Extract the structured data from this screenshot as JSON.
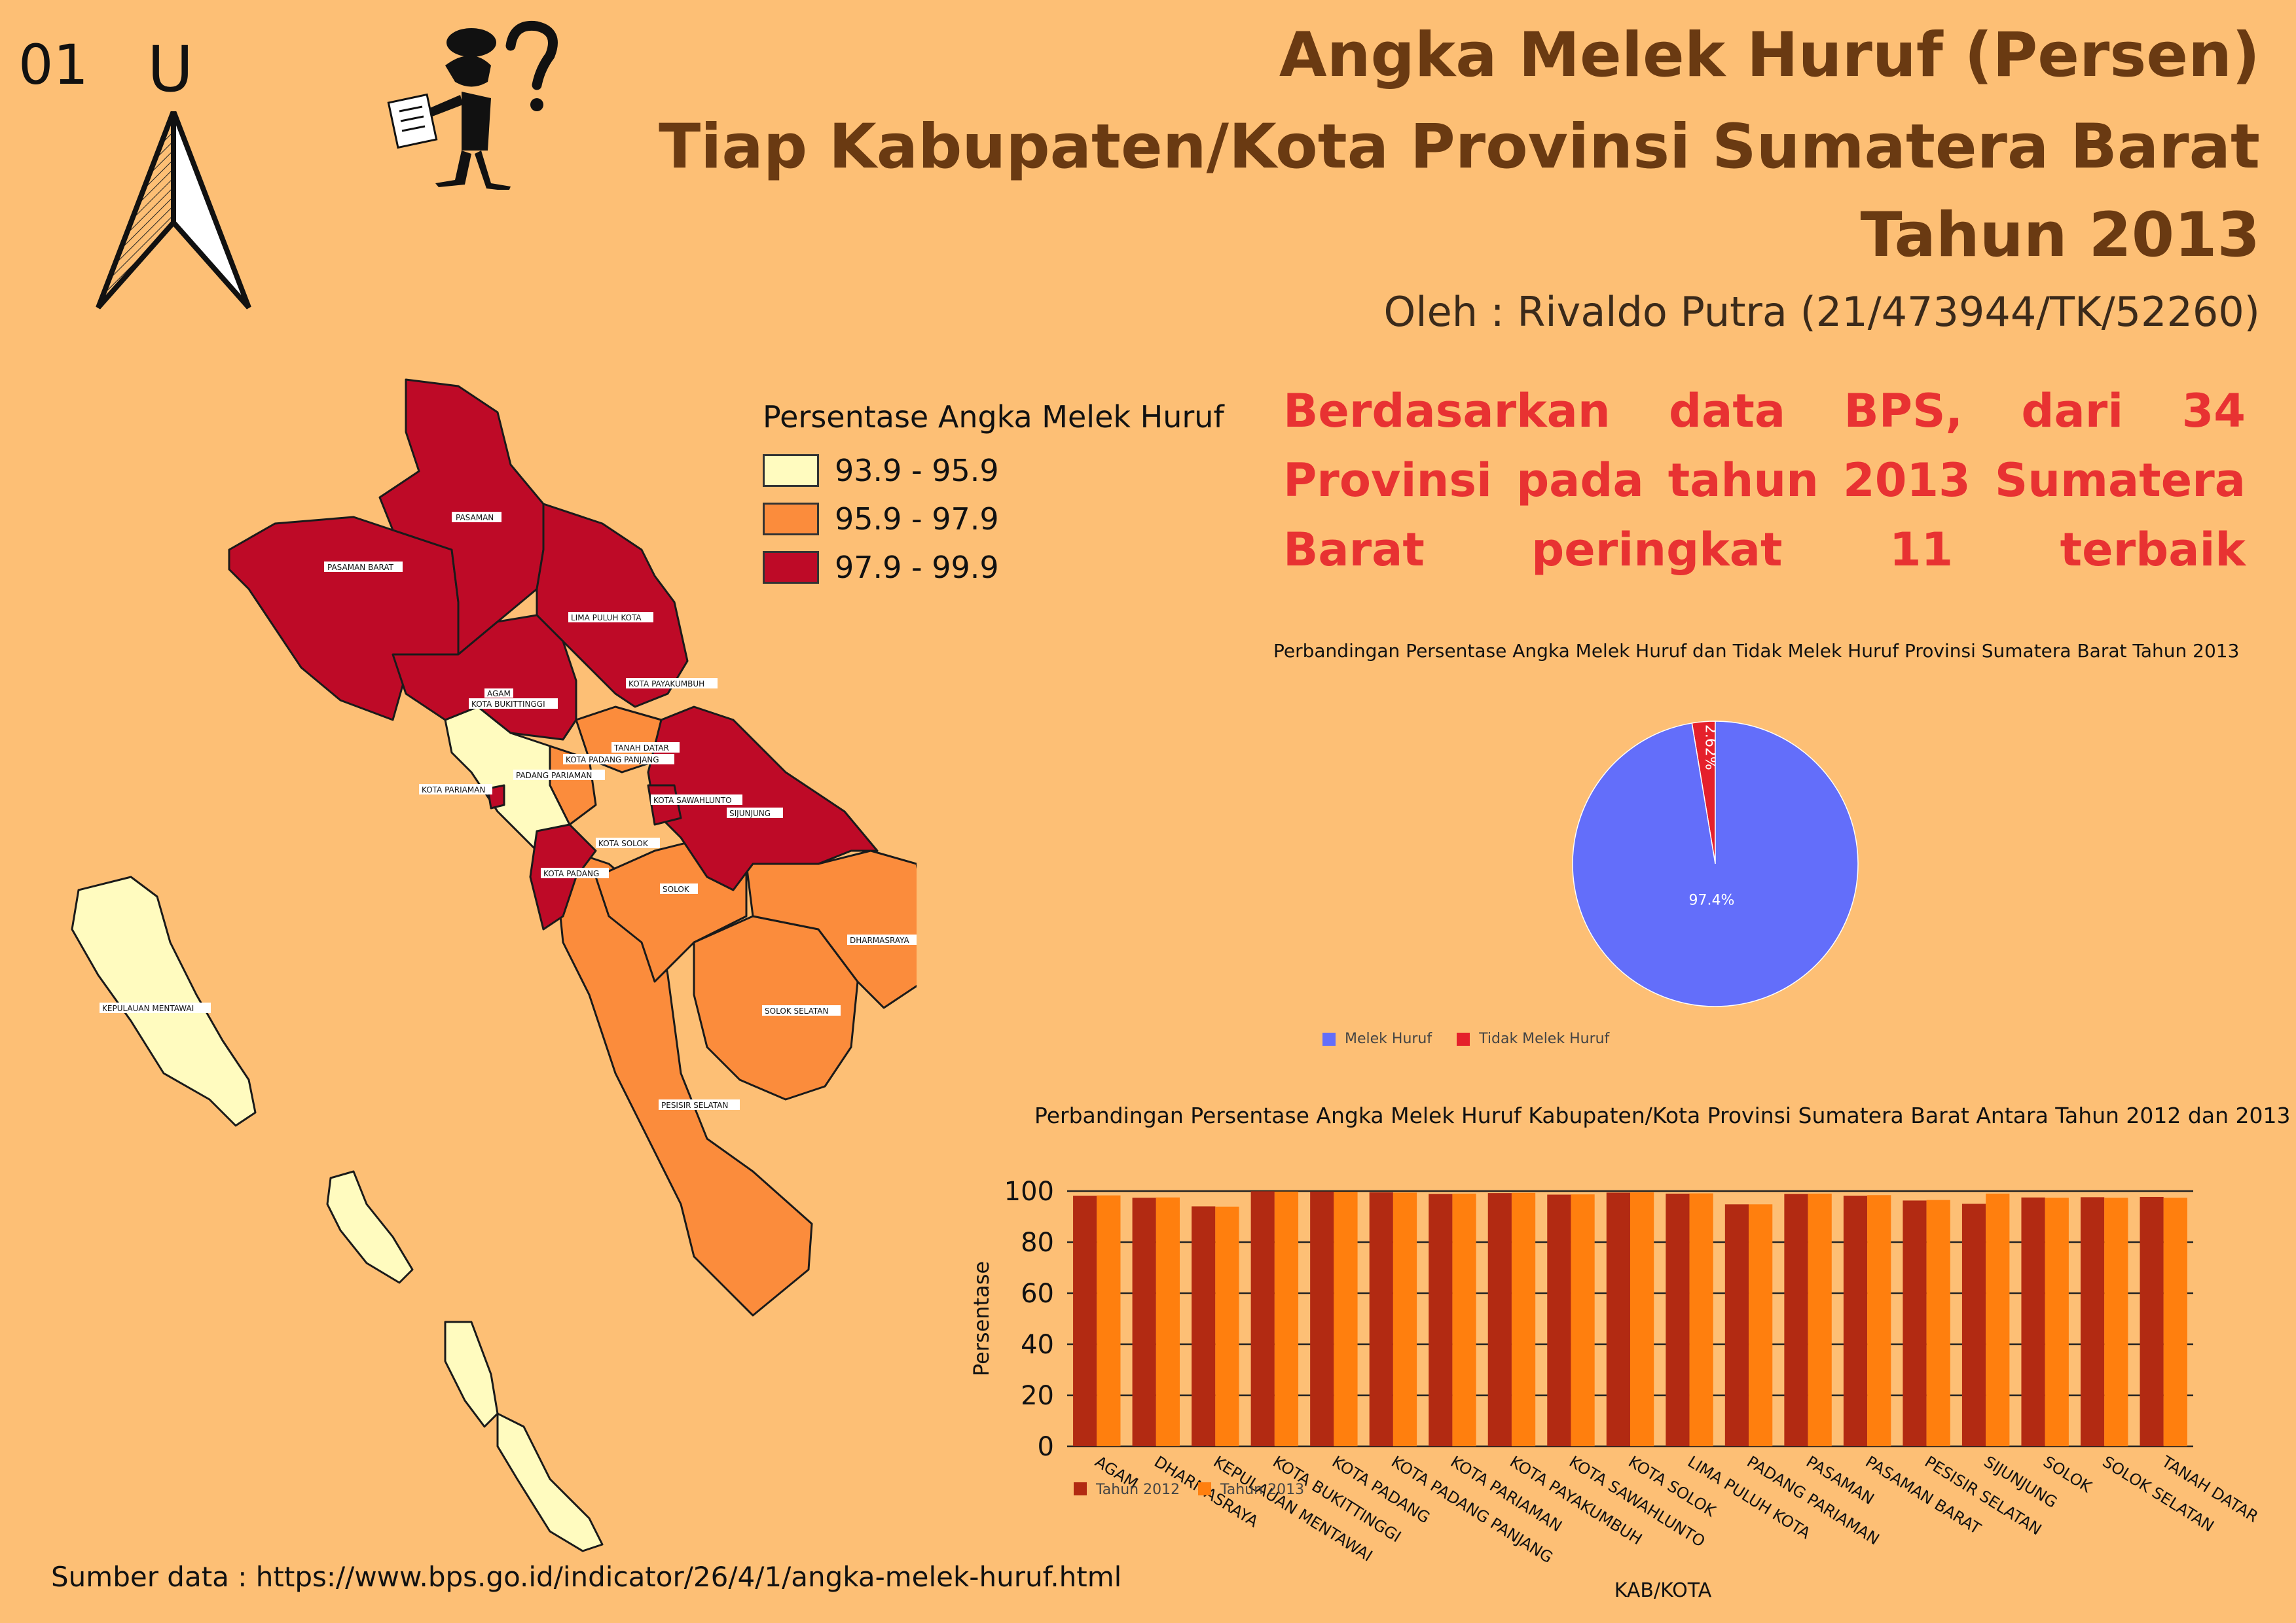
{
  "page_number": "01",
  "north_label": "U",
  "title": {
    "line1": "Angka Melek Huruf (Persen)",
    "line2": "Tiap Kabupaten/Kota Provinsi Sumatera Barat",
    "line3": "Tahun 2013"
  },
  "author": "Oleh : Rivaldo Putra (21/473944/TK/52260)",
  "statement": "Berdasarkan data BPS, dari 34 Provinsi pada tahun 2013 Sumatera Barat peringkat 11 terbaik",
  "legend": {
    "title": "Persentase Angka Melek Huruf",
    "classes": [
      {
        "label": "93.9 - 95.9",
        "color": "#FFFBBF"
      },
      {
        "label": "95.9 - 97.9",
        "color": "#FB8C3C"
      },
      {
        "label": "97.9 - 99.9",
        "color": "#BE0A27"
      }
    ]
  },
  "map_labels": [
    "PASAMAN",
    "PASAMAN BARAT",
    "LIMA PULUH KOTA",
    "KOTA PAYAKUMBUH",
    "AGAM",
    "KOTA BUKITTINGGI",
    "TANAH DATAR",
    "KOTA PADANG PANJANG",
    "PADANG PARIAMAN",
    "KOTA PARIAMAN",
    "KOTA SAWAHLUNTO",
    "SIJUNJUNG",
    "KOTA SOLOK",
    "KOTA PADANG",
    "SOLOK",
    "DHARMASRAYA",
    "SOLOK SELATAN",
    "KEPULAUAN MENTAWAI",
    "PESISIR SELATAN"
  ],
  "source": "Sumber data : https://www.bps.go.id/indicator/26/4/1/angka-melek-huruf.html",
  "chart_data": [
    {
      "type": "pie",
      "title": "Perbandingan Persentase Angka Melek Huruf dan Tidak Melek Huruf Provinsi Sumatera Barat Tahun 2013",
      "labels": [
        "Melek Huruf",
        "Tidak Melek Huruf"
      ],
      "values": [
        97.4,
        2.62
      ],
      "value_labels": [
        "97.4%",
        "2.62%"
      ],
      "colors": [
        "#636EFA",
        "#E5202B"
      ]
    },
    {
      "type": "bar",
      "title": "Perbandingan Persentase Angka Melek Huruf Kabupaten/Kota Provinsi Sumatera Barat Antara Tahun 2012 dan 2013",
      "xlabel": "KAB/KOTA",
      "ylabel": "Persentase",
      "ylim": [
        0,
        100
      ],
      "yticks": [
        0,
        20,
        40,
        60,
        80,
        100
      ],
      "categories": [
        "AGAM",
        "DHARMASRAYA",
        "KEPULAUAN MENTAWAI",
        "KOTA BUKITTINGGI",
        "KOTA PADANG",
        "KOTA PADANG PANJANG",
        "KOTA PARIAMAN",
        "KOTA PAYAKUMBUH",
        "KOTA SAWAHLUNTO",
        "KOTA SOLOK",
        "LIMA PULUH KOTA",
        "PADANG PARIAMAN",
        "PASAMAN",
        "PASAMAN BARAT",
        "PESISIR SELATAN",
        "SIJUNJUNG",
        "SOLOK",
        "SOLOK SELATAN",
        "TANAH DATAR"
      ],
      "series": [
        {
          "name": "Tahun 2012",
          "color": "#B22A12",
          "values": [
            98.2,
            97.4,
            94.0,
            99.9,
            99.8,
            99.5,
            98.9,
            99.2,
            98.6,
            99.4,
            99.0,
            94.8,
            98.9,
            98.2,
            96.3,
            95.0,
            97.5,
            97.6,
            97.7
          ]
        },
        {
          "name": "Tahun 2013",
          "color": "#FF7F0E",
          "values": [
            98.3,
            97.5,
            93.9,
            99.8,
            99.7,
            99.4,
            99.0,
            99.3,
            98.7,
            99.5,
            99.1,
            94.8,
            99.0,
            98.4,
            96.5,
            99.0,
            97.4,
            97.4,
            97.4
          ]
        }
      ]
    }
  ]
}
